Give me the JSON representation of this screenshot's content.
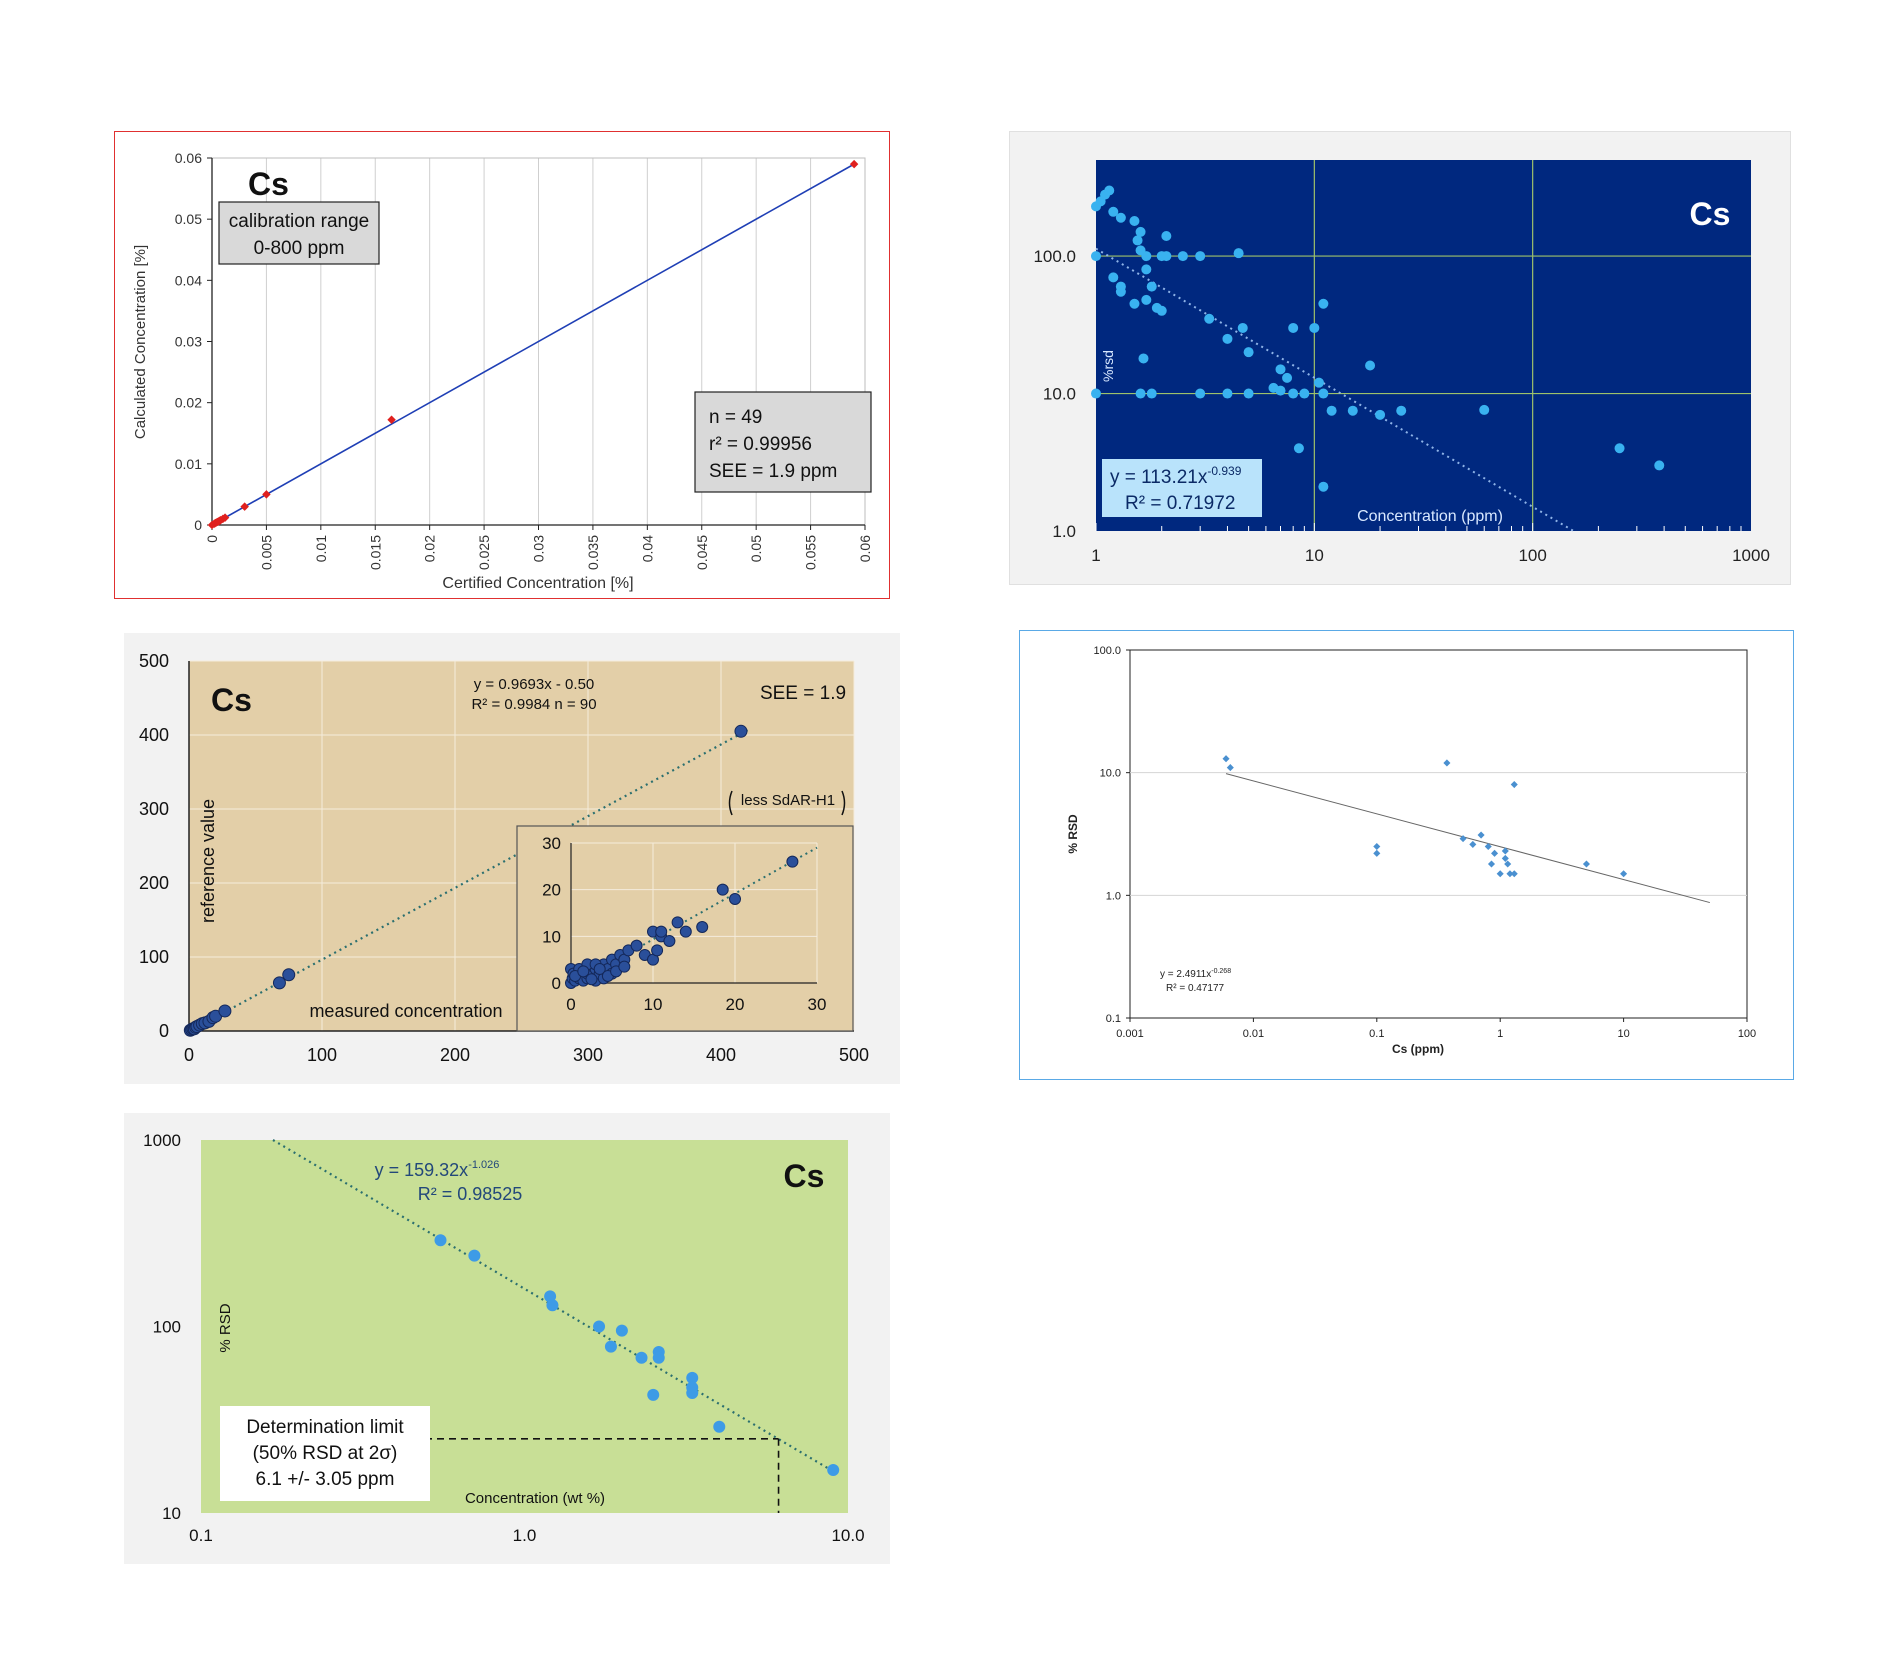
{
  "chart_data": [
    {
      "type": "scatter",
      "label": "Cs",
      "xlabel": "Certified Concentration [%]",
      "ylabel": "Calculated Concentration [%]",
      "xlim": [
        0,
        0.06
      ],
      "ylim": [
        0,
        0.06
      ],
      "x_ticks": [
        "0",
        "0.005",
        "0.01",
        "0.015",
        "0.02",
        "0.025",
        "0.03",
        "0.035",
        "0.04",
        "0.045",
        "0.05",
        "0.055",
        "0.06"
      ],
      "y_ticks": [
        "0",
        "0.01",
        "0.02",
        "0.03",
        "0.04",
        "0.05",
        "0.06"
      ],
      "grid": true,
      "fit_line": {
        "x": [
          0,
          0.059
        ],
        "y": [
          0,
          0.059
        ]
      },
      "points": {
        "x": [
          0.0,
          0.0002,
          0.0003,
          0.0004,
          0.0005,
          0.0006,
          0.0007,
          0.0008,
          0.001,
          0.0012,
          0.003,
          0.005,
          0.0165,
          0.059
        ],
        "y": [
          0.0,
          0.0002,
          0.0003,
          0.0004,
          0.0005,
          0.0006,
          0.0007,
          0.0008,
          0.001,
          0.0012,
          0.003,
          0.005,
          0.0172,
          0.059
        ]
      },
      "box_range": [
        "calibration range",
        "0-800 ppm"
      ],
      "stats": [
        "n = 49",
        "r² = 0.99956",
        "SEE = 1.9 ppm"
      ]
    },
    {
      "type": "scatter",
      "label": "Cs",
      "xlabel": "Concentration (ppm)",
      "ylabel": "%rsd",
      "xscale": "log",
      "yscale": "log",
      "xlim": [
        1,
        1000
      ],
      "ylim": [
        1,
        500
      ],
      "x_ticks": [
        "1",
        "10",
        "100",
        "1000"
      ],
      "y_ticks": [
        "1.0",
        "10.0",
        "100.0"
      ],
      "grid": true,
      "equation": "y = 113.21x",
      "exponent": "-0.939",
      "r2": "R² = 0.71972",
      "points": {
        "x": [
          1.0,
          1.05,
          1.1,
          1.15,
          1.2,
          1.3,
          1.5,
          1.6,
          1.55,
          1.6,
          1.7,
          1.7,
          1.2,
          1.0,
          1.3,
          1.3,
          1.8,
          2.1,
          2.0,
          2.1,
          2.5,
          3.0,
          4.5,
          1.5,
          1.7,
          1.9,
          2.0,
          3.3,
          4.0,
          4.7,
          5.0,
          7.0,
          8.0,
          10.0,
          11.0,
          1.0,
          1.6,
          3.0,
          4.0,
          5.0,
          6.5,
          7.0,
          7.5,
          8.0,
          9.0,
          10.5,
          11.0,
          12.0,
          15.0,
          18.0,
          20.0,
          25.0,
          60.0,
          250.0,
          380.0,
          1.8,
          8.5,
          11.0,
          1.65
        ],
        "y": [
          230.0,
          250.0,
          280.0,
          300.0,
          210.0,
          190.0,
          180.0,
          150.0,
          130.0,
          110.0,
          100.0,
          80.0,
          70.0,
          100.0,
          60.0,
          55.0,
          60.0,
          140.0,
          100.0,
          100.0,
          100.0,
          100.0,
          105.0,
          45.0,
          48.0,
          42.0,
          40.0,
          35.0,
          25.0,
          30.0,
          20.0,
          15.0,
          30.0,
          30.0,
          45.0,
          10.0,
          10.0,
          10.0,
          10.0,
          10.0,
          11.0,
          10.5,
          13.0,
          10.0,
          10.0,
          12.0,
          10.0,
          7.5,
          7.5,
          16.0,
          7.0,
          7.5,
          7.6,
          4.0,
          3.0,
          10.0,
          4.0,
          2.1,
          18.0
        ]
      },
      "fit": {
        "a": 113.21,
        "b": -0.939
      }
    },
    {
      "type": "scatter",
      "label": "Cs",
      "xlabel": "measured concentration",
      "ylabel": "reference value",
      "xlim": [
        0,
        500
      ],
      "ylim": [
        0,
        500
      ],
      "x_ticks": [
        "0",
        "100",
        "200",
        "300",
        "400",
        "500"
      ],
      "y_ticks": [
        "0",
        "100",
        "200",
        "300",
        "400",
        "500"
      ],
      "grid": true,
      "equation": "y = 0.9693x - 0.50",
      "r2_n": "R² = 0.9984   n = 90",
      "see": "SEE = 1.9",
      "note": "less SdAR-H1",
      "points": {
        "x": [
          1.0,
          2.0,
          3.0,
          4.0,
          5.0,
          6.0,
          8.0,
          10.0,
          12.0,
          15.0,
          18.0,
          20.0,
          27.0,
          68.0,
          75.0,
          260.0,
          415.0
        ],
        "y": [
          1.0,
          2.0,
          3.0,
          3.0,
          5.0,
          6.0,
          8.0,
          10.0,
          11.0,
          13.0,
          18.0,
          20.0,
          27.0,
          65.0,
          76.0,
          245.0,
          405.0
        ]
      },
      "inset": {
        "xlim": [
          0,
          30
        ],
        "ylim": [
          0,
          30
        ],
        "x_ticks": [
          "0",
          "10",
          "20",
          "30"
        ],
        "y_ticks": [
          "0",
          "10",
          "20",
          "30"
        ],
        "x": [
          0.0,
          0.2,
          0.5,
          1.0,
          1.0,
          1.5,
          2.0,
          2.0,
          2.5,
          3.0,
          3.0,
          3.5,
          4.0,
          4.0,
          4.5,
          5.0,
          5.0,
          5.5,
          6.0,
          6.5,
          7.0,
          8.0,
          9.0,
          10.0,
          10.0,
          11.0,
          11.0,
          12.0,
          13.0,
          14.0,
          16.0,
          18.5,
          20.0,
          27.0,
          0.0,
          0.3,
          1.0,
          2.0,
          3.0,
          0.5,
          1.5,
          2.5,
          3.5,
          4.5,
          5.5,
          6.5,
          10.5
        ],
        "y": [
          0.0,
          1.0,
          0.5,
          1.0,
          2.0,
          0.5,
          1.0,
          2.0,
          1.5,
          0.5,
          3.0,
          2.0,
          1.0,
          4.0,
          3.0,
          2.0,
          5.0,
          4.0,
          6.0,
          5.0,
          7.0,
          8.0,
          6.0,
          5.0,
          11.0,
          10.0,
          11.0,
          9.0,
          13.0,
          11.0,
          12.0,
          20.0,
          18.0,
          26.0,
          3.0,
          2.0,
          3.0,
          4.0,
          4.0,
          1.5,
          2.5,
          0.8,
          3.0,
          1.5,
          2.5,
          3.5,
          7.0
        ]
      }
    },
    {
      "type": "scatter",
      "xlabel": "Cs (ppm)",
      "ylabel": "% RSD",
      "xscale": "log",
      "yscale": "log",
      "xlim": [
        0.001,
        100
      ],
      "ylim": [
        0.1,
        100
      ],
      "x_ticks": [
        "0.001",
        "0.01",
        "0.1",
        "1",
        "10",
        "100"
      ],
      "y_ticks": [
        "0.1",
        "1.0",
        "10.0",
        "100.0"
      ],
      "grid": true,
      "equation": "y = 2.4911x",
      "exponent": "-0.268",
      "r2": "R² = 0.47177",
      "points": {
        "x": [
          0.006,
          0.0065,
          0.1,
          0.1,
          0.37,
          0.5,
          0.6,
          0.7,
          0.8,
          0.85,
          0.9,
          1.0,
          1.1,
          1.1,
          1.15,
          1.2,
          1.3,
          1.3,
          5.0,
          10.0
        ],
        "y": [
          13.0,
          11.0,
          2.5,
          2.2,
          12.0,
          2.9,
          2.6,
          3.1,
          2.5,
          1.8,
          2.2,
          1.5,
          2.0,
          2.3,
          1.8,
          1.5,
          1.5,
          8.0,
          1.8,
          1.5
        ]
      },
      "fit": {
        "a": 2.4911,
        "b": -0.268,
        "x": [
          0.006,
          50
        ]
      }
    },
    {
      "type": "scatter",
      "label": "Cs",
      "xlabel": "Concentration (wt %)",
      "ylabel": "% RSD",
      "xscale": "log",
      "yscale": "log",
      "xlim": [
        0.1,
        10
      ],
      "ylim": [
        10,
        1000
      ],
      "x_ticks": [
        "0.1",
        "1.0",
        "10.0"
      ],
      "y_ticks": [
        "10",
        "100",
        "1000"
      ],
      "equation": "y = 159.32x",
      "exponent": "-1.026",
      "r2": "R² = 0.98525",
      "box_limit": [
        "Determination limit",
        "(50% RSD at 2σ)",
        "6.1 +/- 3.05 ppm"
      ],
      "limit": {
        "x": 6.1,
        "y": 25
      },
      "points": {
        "x": [
          0.55,
          0.7,
          1.2,
          1.22,
          1.7,
          1.85,
          2.0,
          2.3,
          2.5,
          2.6,
          2.6,
          3.3,
          3.3,
          3.3,
          4.0,
          9.0
        ],
        "y": [
          290.0,
          240.0,
          145.0,
          130.0,
          100.0,
          78.0,
          95.0,
          68.0,
          43.0,
          73.0,
          68.0,
          53.0,
          47.0,
          44.0,
          29.0,
          17.0
        ]
      },
      "fit": {
        "a": 159.32,
        "b": -1.026
      }
    }
  ]
}
